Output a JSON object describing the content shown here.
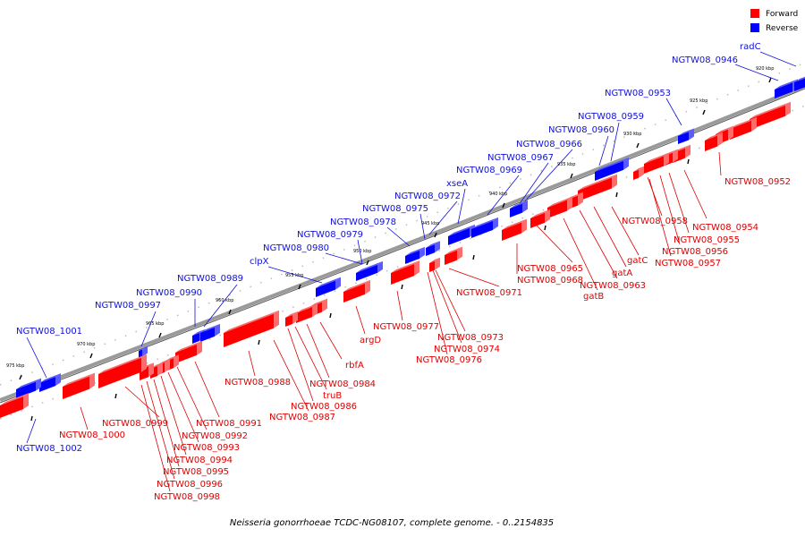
{
  "legend": [
    {
      "label": "Forward",
      "color": "#ff0000"
    },
    {
      "label": "Reverse",
      "color": "#0000ff"
    }
  ],
  "caption": "Neisseria gonorrhoeae TCDC-NG08107, complete genome. - 0..2154835",
  "colors": {
    "forward": "#ff0000",
    "reverse": "#0000ff",
    "forward_label": "#dd0000",
    "reverse_label": "#1010d8",
    "backbone": "#9a9a9a"
  },
  "scale_labels": [
    "975 kbp",
    "970 kbp",
    "965 kbp",
    "960 kbp",
    "955 kbp",
    "950 kbp",
    "945 kbp",
    "940 kbp",
    "935 kbp",
    "930 kbp",
    "925 kbp",
    "920 kbp"
  ],
  "reverse_labels": [
    "radC",
    "NGTW08_0946",
    "NGTW08_0953",
    "NGTW08_0959",
    "NGTW08_0960",
    "NGTW08_0966",
    "NGTW08_0967",
    "NGTW08_0969",
    "xseA",
    "NGTW08_0972",
    "NGTW08_0975",
    "NGTW08_0978",
    "NGTW08_0979",
    "NGTW08_0980",
    "clpX",
    "NGTW08_0989",
    "NGTW08_0990",
    "NGTW08_0997",
    "NGTW08_1001",
    "NGTW08_1002"
  ],
  "forward_labels": [
    "NGTW08_0952",
    "NGTW08_0958",
    "NGTW08_0954",
    "NGTW08_0955",
    "NGTW08_0956",
    "NGTW08_0957",
    "gatC",
    "gatA",
    "NGTW08_0963",
    "gatB",
    "NGTW08_0965",
    "NGTW08_0968",
    "NGTW08_0971",
    "NGTW08_0973",
    "NGTW08_0974",
    "NGTW08_0976",
    "NGTW08_0977",
    "argD",
    "rbfA",
    "NGTW08_0984",
    "truB",
    "NGTW08_0986",
    "NGTW08_0987",
    "NGTW08_0988",
    "NGTW08_0991",
    "NGTW08_0992",
    "NGTW08_0993",
    "NGTW08_0994",
    "NGTW08_0995",
    "NGTW08_0996",
    "NGTW08_0998",
    "NGTW08_0999",
    "NGTW08_1000"
  ]
}
